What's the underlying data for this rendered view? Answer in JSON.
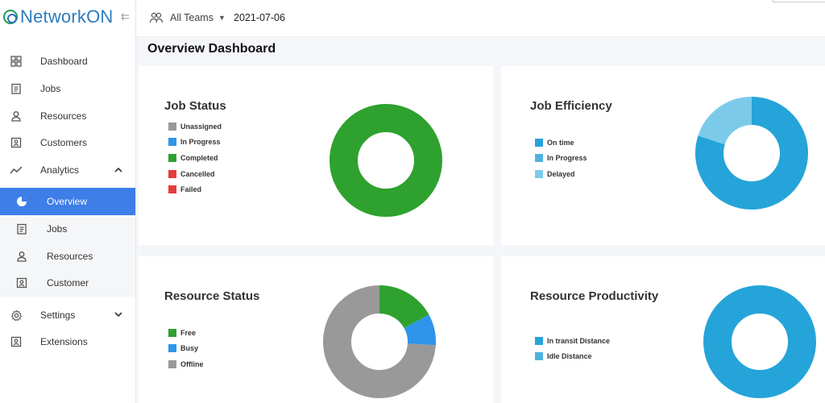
{
  "app": {
    "logo_text": "NetworkON"
  },
  "sidebar": {
    "items": [
      {
        "label": "Dashboard",
        "icon": "dashboard-icon"
      },
      {
        "label": "Jobs",
        "icon": "clipboard-icon"
      },
      {
        "label": "Resources",
        "icon": "person-icon"
      },
      {
        "label": "Customers",
        "icon": "contact-card-icon"
      },
      {
        "label": "Analytics",
        "icon": "trend-icon",
        "expanded": true
      },
      {
        "label": "Settings",
        "icon": "gear-icon",
        "expanded": false
      },
      {
        "label": "Extensions",
        "icon": "contact-card-icon"
      }
    ],
    "analytics_sub": [
      {
        "label": "Overview",
        "icon": "pie-icon",
        "active": true
      },
      {
        "label": "Jobs",
        "icon": "clipboard-icon"
      },
      {
        "label": "Resources",
        "icon": "person-icon"
      },
      {
        "label": "Customer",
        "icon": "contact-card-icon"
      }
    ]
  },
  "topbar": {
    "team_select": "All Teams",
    "date": "2021-07-06"
  },
  "page": {
    "title": "Overview Dashboard"
  },
  "colors": {
    "accent": "#3d7ee8",
    "gray": "#999999",
    "blue": "#2f95ea",
    "green": "#2ea12e",
    "red": "#e63b3b",
    "ontime": "#25a4d9",
    "inprogress": "#4fb2de",
    "delayed": "#7ccaea"
  },
  "chart_data": [
    {
      "type": "pie",
      "variant": "donut",
      "title": "Job Status",
      "categories": [
        "Unassigned",
        "In Progress",
        "Completed",
        "Cancelled",
        "Failed"
      ],
      "values": [
        0,
        0,
        100,
        0,
        0
      ],
      "colors": [
        "#999999",
        "#2f95ea",
        "#2ea12e",
        "#e63b3b",
        "#e63b3b"
      ],
      "legend": "left"
    },
    {
      "type": "pie",
      "variant": "donut",
      "title": "Job Efficiency",
      "categories": [
        "On time",
        "In Progress",
        "Delayed"
      ],
      "values": [
        80,
        0,
        20
      ],
      "colors": [
        "#25a4d9",
        "#4fb2de",
        "#7ccaea"
      ],
      "legend": "left"
    },
    {
      "type": "pie",
      "variant": "donut",
      "title": "Resource Status",
      "categories": [
        "Free",
        "Busy",
        "Offline"
      ],
      "values": [
        17,
        9,
        74
      ],
      "colors": [
        "#2ea12e",
        "#2f95ea",
        "#999999"
      ],
      "legend": "left"
    },
    {
      "type": "pie",
      "variant": "donut",
      "title": "Resource Productivity",
      "categories": [
        "In transit Distance",
        "Idle Distance"
      ],
      "values": [
        100,
        0
      ],
      "colors": [
        "#25a4d9",
        "#4fb2de"
      ],
      "legend": "left"
    }
  ]
}
